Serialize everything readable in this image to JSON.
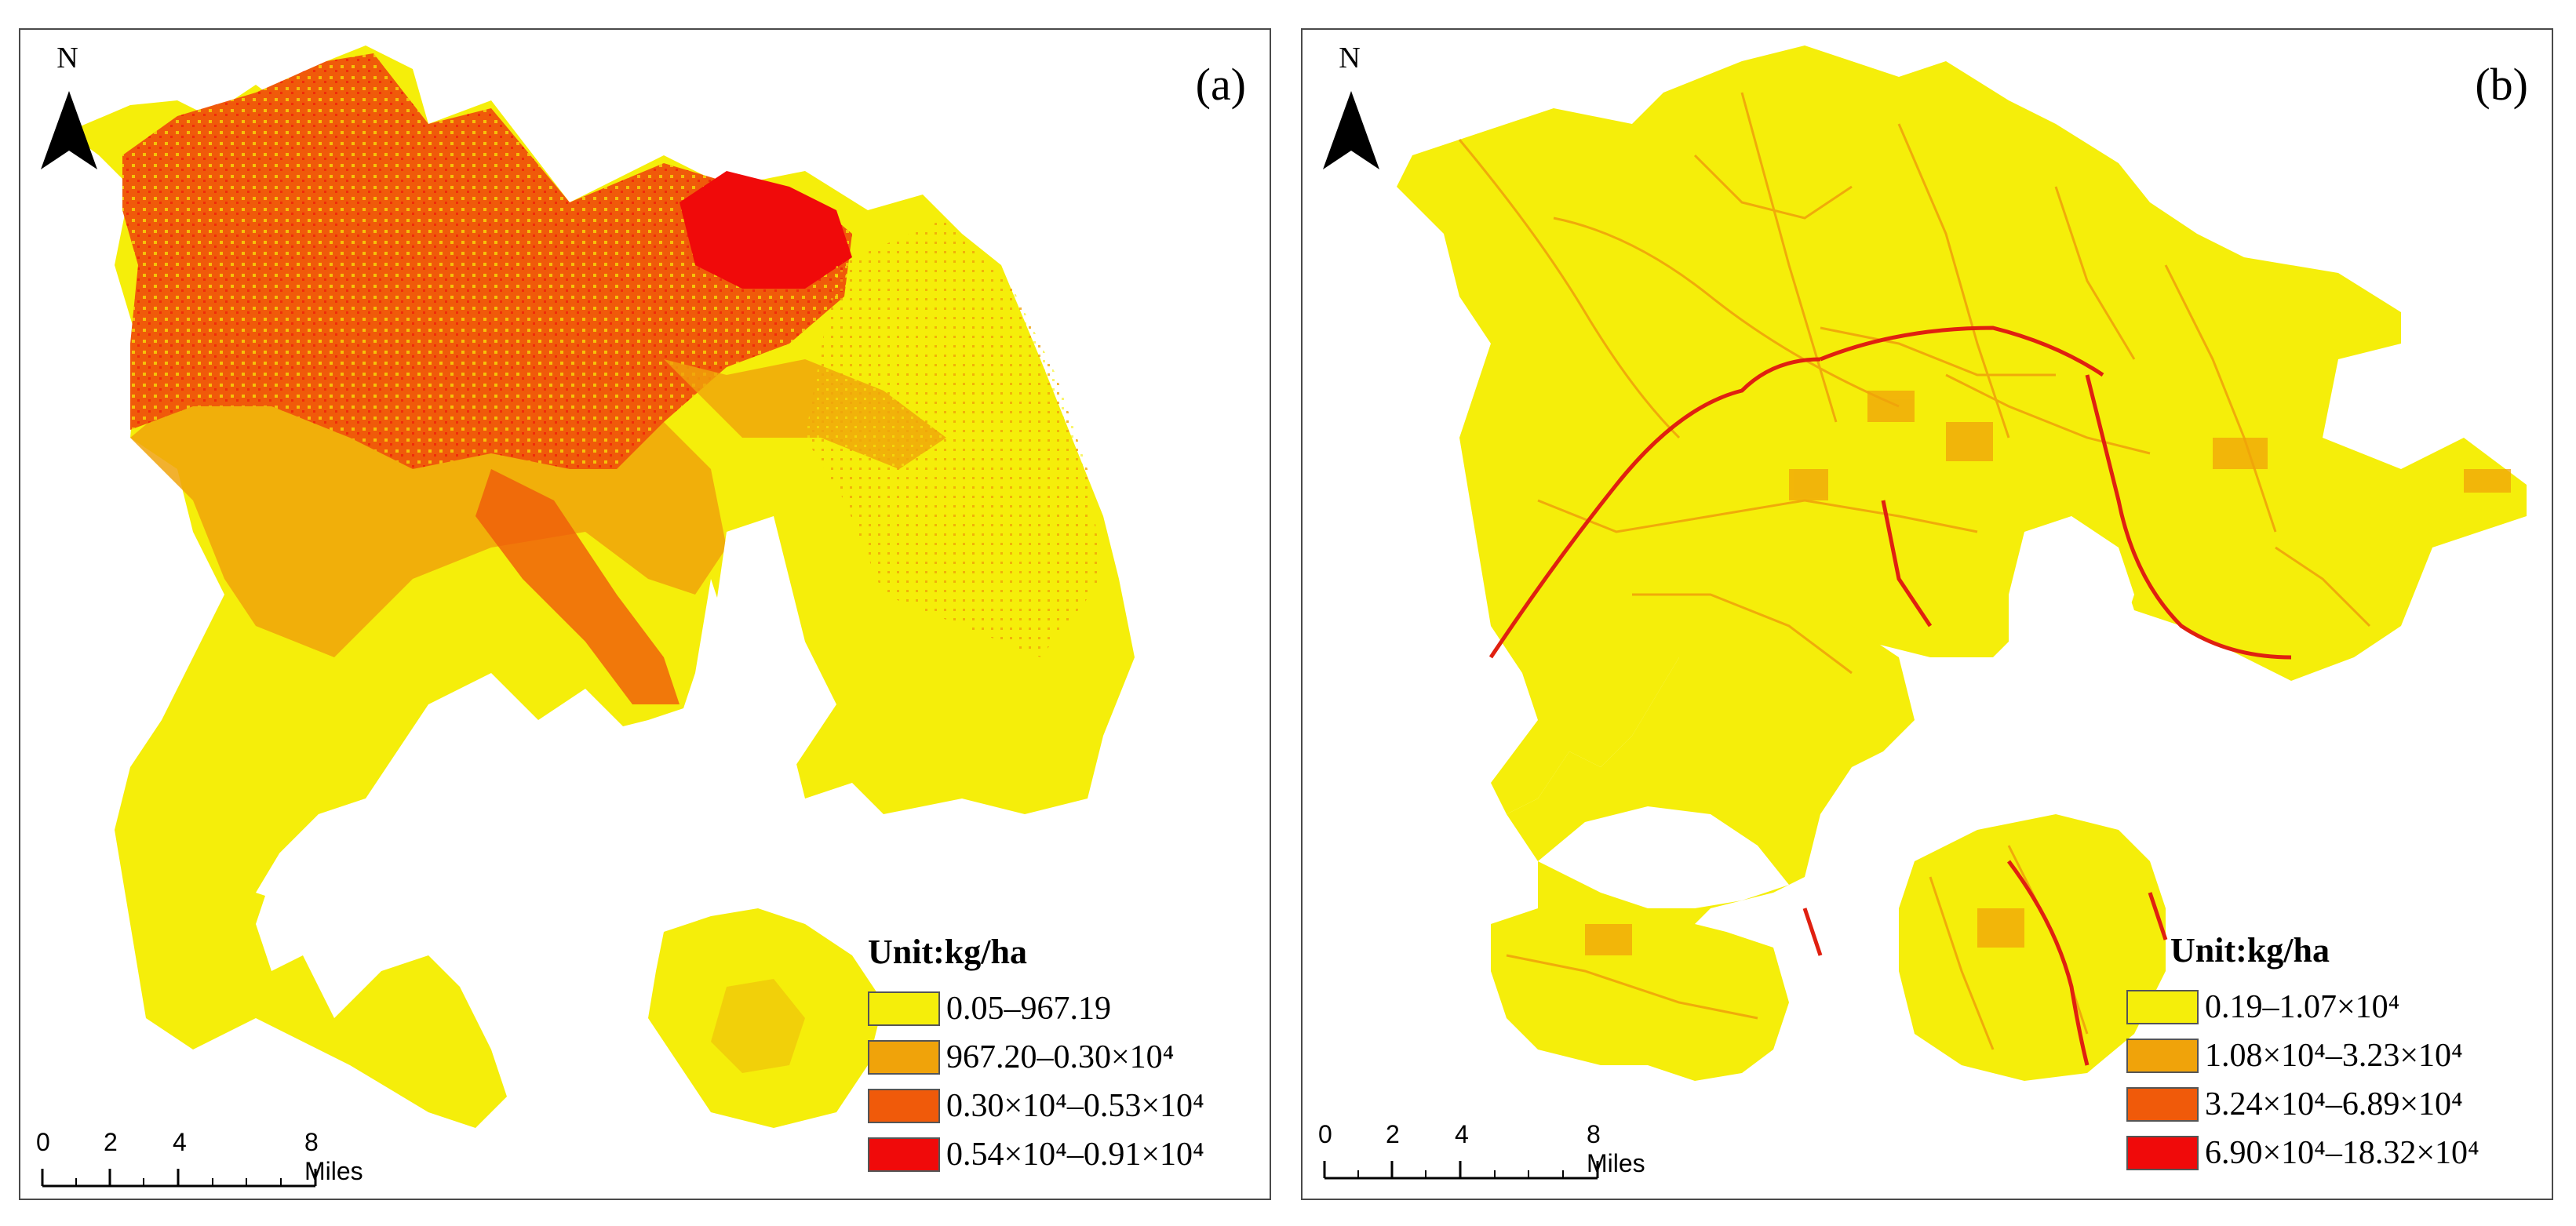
{
  "panels": [
    {
      "id": "a",
      "label": "(a)",
      "north": "N",
      "legend_title": "Unit:kg/ha",
      "legend": [
        {
          "label": "0.05–967.19",
          "color": "#f5ee0a"
        },
        {
          "label": "967.20–0.30×10⁴",
          "color": "#f0a30a"
        },
        {
          "label": "0.30×10⁴–0.53×10⁴",
          "color": "#f05a0a"
        },
        {
          "label": "0.54×10⁴–0.91×10⁴",
          "color": "#f00a0a"
        }
      ],
      "scale_ticks": [
        "0",
        "2",
        "4",
        "8 Miles"
      ]
    },
    {
      "id": "b",
      "label": "(b)",
      "north": "N",
      "legend_title": "Unit:kg/ha",
      "legend": [
        {
          "label": "0.19–1.07×10⁴",
          "color": "#f5ee0a"
        },
        {
          "label": "1.08×10⁴–3.23×10⁴",
          "color": "#f0a30a"
        },
        {
          "label": "3.24×10⁴–6.89×10⁴",
          "color": "#f05a0a"
        },
        {
          "label": "6.90×10⁴–18.32×10⁴",
          "color": "#f00a0a"
        }
      ],
      "scale_ticks": [
        "0",
        "2",
        "4",
        "8 Miles"
      ]
    }
  ]
}
